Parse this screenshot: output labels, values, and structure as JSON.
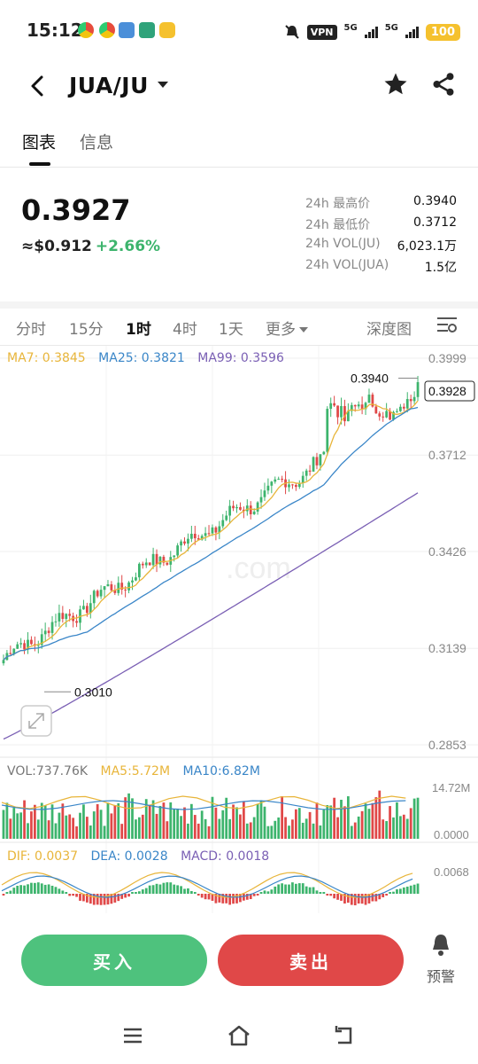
{
  "status_bar": {
    "time": "15:12",
    "vpn": "VPN",
    "sig1": "5G",
    "sig2": "5G",
    "battery": "100"
  },
  "header": {
    "pair": "JUA/JU",
    "icons": [
      "back-arrow-icon",
      "chevron-down-icon",
      "star-icon",
      "share-icon"
    ]
  },
  "tabs": [
    {
      "label": "图表",
      "active": true
    },
    {
      "label": "信息",
      "active": false
    }
  ],
  "price": {
    "last": "0.3927",
    "usd": "≈$0.912",
    "change": "+2.66%",
    "change_color": "#3db46d"
  },
  "stats": [
    {
      "label": "24h 最高价",
      "value": "0.3940"
    },
    {
      "label": "24h 最低价",
      "value": "0.3712"
    },
    {
      "label": "24h VOL(JU)",
      "value": "6,023.1万"
    },
    {
      "label": "24h VOL(JUA)",
      "value": "1.5亿"
    }
  ],
  "intervals": [
    {
      "label": "分时"
    },
    {
      "label": "15分"
    },
    {
      "label": "1时",
      "active": true
    },
    {
      "label": "4时"
    },
    {
      "label": "1天"
    },
    {
      "label": "更多"
    }
  ],
  "depth_label": "深度图",
  "chart_data": {
    "type": "candlestick",
    "interval": "1时",
    "y_ticks": [
      "0.3999",
      "0.3712",
      "0.3426",
      "0.3139",
      "0.2853"
    ],
    "ylim": [
      0.2853,
      0.3999
    ],
    "ma_legend": [
      {
        "label": "MA7: 0.3845",
        "color": "#e8b53a"
      },
      {
        "label": "MA25: 0.3821",
        "color": "#3a86c8"
      },
      {
        "label": "MA99: 0.3596",
        "color": "#7a5fb4"
      }
    ],
    "high_marker": "0.3940",
    "low_marker": "0.3010",
    "current_price_tag": "0.3928",
    "up_color": "#3db46d",
    "down_color": "#e04848",
    "watermark": ".com",
    "volume": {
      "legend": [
        {
          "label": "VOL:737.76K",
          "color": "#777777"
        },
        {
          "label": "MA5:5.72M",
          "color": "#e8b53a"
        },
        {
          "label": "MA10:6.82M",
          "color": "#3a86c8"
        }
      ],
      "y_ticks": [
        "14.72M",
        "0.0000"
      ]
    },
    "macd": {
      "legend": [
        {
          "label": "DIF: 0.0037",
          "color": "#e8b53a"
        },
        {
          "label": "DEA: 0.0028",
          "color": "#3a86c8"
        },
        {
          "label": "MACD: 0.0018",
          "color": "#7a5fb4"
        }
      ],
      "y_ticks": [
        "0.0068"
      ]
    }
  },
  "actions": {
    "buy": "买入",
    "sell": "卖出",
    "alert": "预警"
  }
}
